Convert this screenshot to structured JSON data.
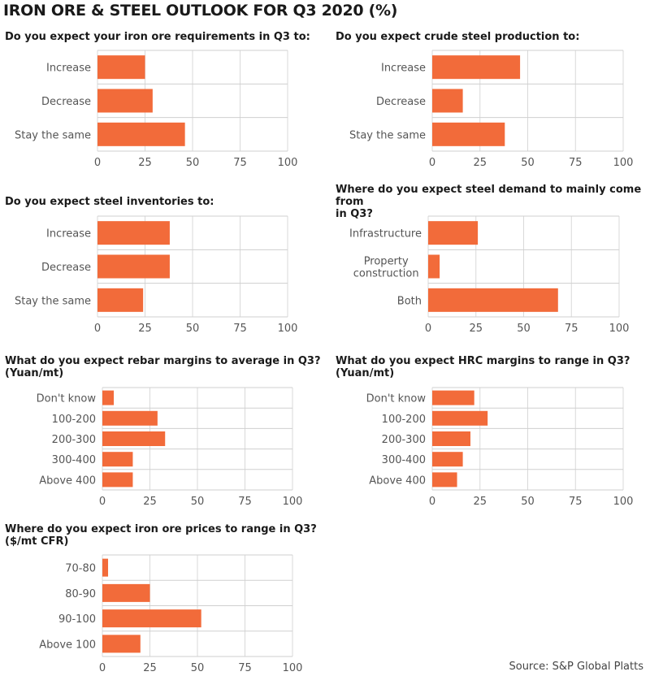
{
  "title": "IRON ORE & STEEL OUTLOOK FOR Q3 2020 (%)",
  "source": "Source: S&P Global Platts",
  "colors": {
    "bar": "#f26b3a",
    "grid": "#d9d9d9",
    "frame": "#cfcfcf"
  },
  "chart_data": [
    {
      "type": "bar",
      "orientation": "horizontal",
      "title": "Do you expect your iron ore requirements in Q3 to:",
      "categories": [
        "Increase",
        "Decrease",
        "Stay the same"
      ],
      "values": [
        25,
        29,
        46
      ],
      "xlim": [
        0,
        100
      ],
      "xticks": [
        0,
        25,
        50,
        75,
        100
      ],
      "grid": true
    },
    {
      "type": "bar",
      "orientation": "horizontal",
      "title": "Do you expect crude steel production to:",
      "categories": [
        "Increase",
        "Decrease",
        "Stay the same"
      ],
      "values": [
        46,
        16,
        38
      ],
      "xlim": [
        0,
        100
      ],
      "xticks": [
        0,
        25,
        50,
        75,
        100
      ],
      "grid": true
    },
    {
      "type": "bar",
      "orientation": "horizontal",
      "title": "Do you expect steel inventories to:",
      "categories": [
        "Increase",
        "Decrease",
        "Stay the same"
      ],
      "values": [
        38,
        38,
        24
      ],
      "xlim": [
        0,
        100
      ],
      "xticks": [
        0,
        25,
        50,
        75,
        100
      ],
      "grid": true
    },
    {
      "type": "bar",
      "orientation": "horizontal",
      "title": "Where do you expect steel demand to mainly come from\nin Q3?",
      "categories": [
        "Infrastructure",
        "Property\nconstruction",
        "Both"
      ],
      "values": [
        26,
        6,
        68
      ],
      "xlim": [
        0,
        100
      ],
      "xticks": [
        0,
        25,
        50,
        75,
        100
      ],
      "grid": true
    },
    {
      "type": "bar",
      "orientation": "horizontal",
      "title": "What do you expect rebar margins to average in Q3?\n(Yuan/mt)",
      "categories": [
        "Don't know",
        "100-200",
        "200-300",
        "300-400",
        "Above 400"
      ],
      "values": [
        6,
        29,
        33,
        16,
        16
      ],
      "xlim": [
        0,
        100
      ],
      "xticks": [
        0,
        25,
        50,
        75,
        100
      ],
      "grid": true
    },
    {
      "type": "bar",
      "orientation": "horizontal",
      "title": "What do you expect HRC margins to range in Q3?\n(Yuan/mt)",
      "categories": [
        "Don't know",
        "100-200",
        "200-300",
        "300-400",
        "Above 400"
      ],
      "values": [
        22,
        29,
        20,
        16,
        13
      ],
      "xlim": [
        0,
        100
      ],
      "xticks": [
        0,
        25,
        50,
        75,
        100
      ],
      "grid": true
    },
    {
      "type": "bar",
      "orientation": "horizontal",
      "title": "Where do you expect iron ore prices to range in Q3?\n($/mt CFR)",
      "categories": [
        "70-80",
        "80-90",
        "90-100",
        "Above 100"
      ],
      "values": [
        3,
        25,
        52,
        20
      ],
      "xlim": [
        0,
        100
      ],
      "xticks": [
        0,
        25,
        50,
        75,
        100
      ],
      "grid": true
    }
  ]
}
